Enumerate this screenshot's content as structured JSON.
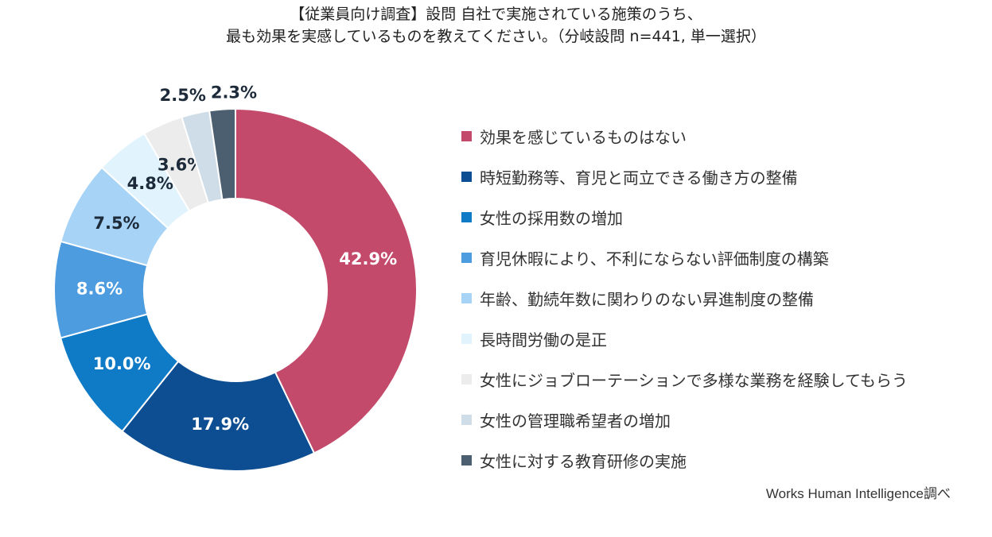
{
  "title": {
    "line1": "【従業員向け調査】設問 自社で実施されている施策のうち、",
    "line2": "最も効果を実感しているものを教えてください。（分岐設問 n=441, 単一選択）"
  },
  "source": "Works Human Intelligence調べ",
  "chart_data": {
    "type": "pie",
    "donut": true,
    "legend_position": "right",
    "slices": [
      {
        "name": "効果を感じているものはない",
        "value": 42.9,
        "label": "42.9%",
        "color": "#c44a6b",
        "label_color": "#ffffff"
      },
      {
        "name": "時短勤務等、育児と両立できる働き方の整備",
        "value": 17.9,
        "label": "17.9%",
        "color": "#0d4e93",
        "label_color": "#ffffff"
      },
      {
        "name": "女性の採用数の増加",
        "value": 10.0,
        "label": "10.0%",
        "color": "#0f7ac6",
        "label_color": "#ffffff"
      },
      {
        "name": "育児休暇により、不利にならない評価制度の構築",
        "value": 8.6,
        "label": "8.6%",
        "color": "#4e9ce0",
        "label_color": "#ffffff"
      },
      {
        "name": "年齢、勤続年数に関わりのない昇進制度の整備",
        "value": 7.5,
        "label": "7.5%",
        "color": "#a6d3f6",
        "label_color": "#1c2a3a"
      },
      {
        "name": "長時間労働の是正",
        "value": 4.8,
        "label": "4.8%",
        "color": "#e1f3fd",
        "label_color": "#1c2a3a"
      },
      {
        "name": "女性にジョブローテーションで多様な業務を経験してもらう",
        "value": 3.6,
        "label": "3.6%",
        "color": "#ececec",
        "label_color": "#1c2a3a"
      },
      {
        "name": "女性の管理職希望者の増加",
        "value": 2.5,
        "label": "2.5%",
        "color": "#cfdde8",
        "label_color": "#1c2a3a"
      },
      {
        "name": "女性に対する教育研修の実施",
        "value": 2.3,
        "label": "2.3%",
        "color": "#4b5f70",
        "label_color": "#1c2a3a"
      }
    ]
  }
}
